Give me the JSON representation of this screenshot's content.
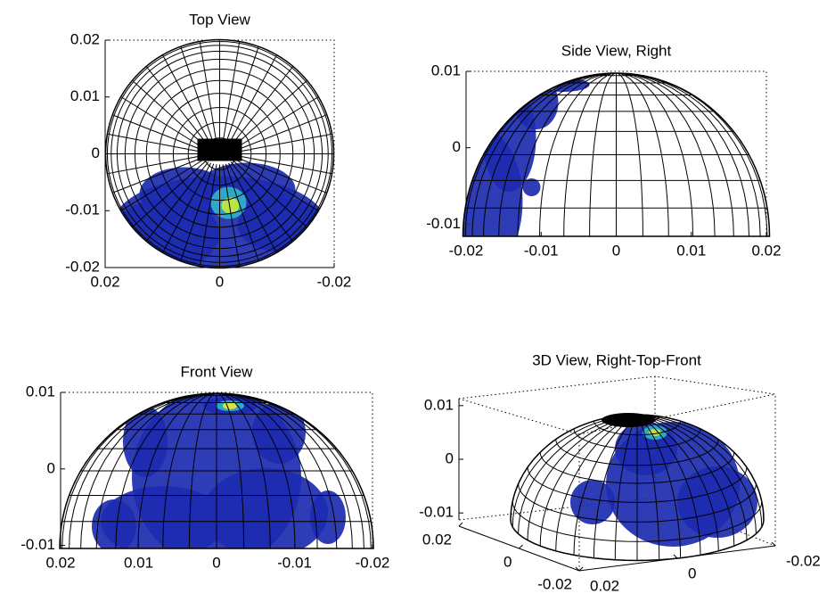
{
  "chart_data": [
    {
      "type": "top",
      "title": "Top View",
      "xlim": [
        0.02,
        -0.02
      ],
      "ylim": [
        -0.02,
        0.02
      ],
      "xticks": [
        0.02,
        0,
        -0.02
      ],
      "yticks": [
        -0.02,
        -0.01,
        0,
        0.01,
        0.02
      ]
    },
    {
      "type": "side",
      "title": "Side View, Right",
      "xlim": [
        -0.02,
        0.02
      ],
      "ylim": [
        -0.0116,
        0.01
      ],
      "xticks": [
        -0.02,
        -0.01,
        0,
        0.01,
        0.02
      ],
      "yticks": [
        -0.01,
        0,
        0.01
      ]
    },
    {
      "type": "front",
      "title": "Front View",
      "xlim": [
        0.02,
        -0.02
      ],
      "ylim": [
        -0.0104,
        0.01
      ],
      "xticks": [
        0.02,
        0.01,
        0,
        -0.01,
        -0.02
      ],
      "yticks": [
        -0.01,
        0,
        0.01
      ]
    },
    {
      "type": "iso",
      "title": "3D View, Right-Top-Front",
      "xlim": [
        0.02,
        -0.02
      ],
      "ylim": [
        0.02,
        -0.02
      ],
      "zlim": [
        -0.0113,
        0.0113
      ],
      "xticks": [
        0.02,
        0,
        -0.02
      ],
      "yticks": [
        0.02,
        0,
        -0.02
      ],
      "zticks": [
        -0.01,
        0,
        0.01
      ]
    }
  ]
}
